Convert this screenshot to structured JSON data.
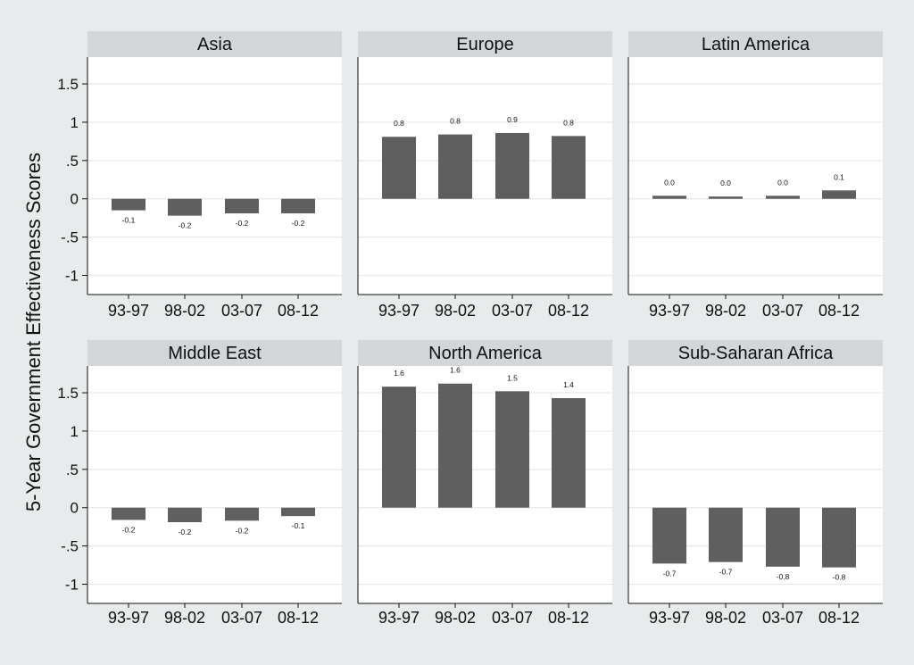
{
  "chart_data": {
    "type": "bar",
    "ylabel": "5-Year Government Effectiveness Scores",
    "categories": [
      "93-97",
      "98-02",
      "03-07",
      "08-12"
    ],
    "ylim": [
      -1.25,
      1.85
    ],
    "yticks": [
      -1,
      -0.5,
      0,
      0.5,
      1,
      1.5
    ],
    "ytick_labels": [
      "-1",
      "-.5",
      "0",
      ".5",
      "1",
      "1.5"
    ],
    "grid": true,
    "bar_color": "#5f5f5f",
    "panels": [
      {
        "name": "Asia",
        "values": [
          -0.15,
          -0.22,
          -0.19,
          -0.19
        ],
        "labels": [
          "-0.1",
          "-0.2",
          "-0.2",
          "-0.2"
        ]
      },
      {
        "name": "Europe",
        "values": [
          0.81,
          0.84,
          0.86,
          0.82
        ],
        "labels": [
          "0.8",
          "0.8",
          "0.9",
          "0.8"
        ]
      },
      {
        "name": "Latin America",
        "values": [
          0.04,
          0.03,
          0.04,
          0.11
        ],
        "labels": [
          "0.0",
          "0.0",
          "0.0",
          "0.1"
        ]
      },
      {
        "name": "Middle East",
        "values": [
          -0.16,
          -0.19,
          -0.17,
          -0.11
        ],
        "labels": [
          "-0.2",
          "-0.2",
          "-0.2",
          "-0.1"
        ]
      },
      {
        "name": "North America",
        "values": [
          1.58,
          1.62,
          1.52,
          1.43
        ],
        "labels": [
          "1.6",
          "1.6",
          "1.5",
          "1.4"
        ]
      },
      {
        "name": "Sub-Saharan Africa",
        "values": [
          -0.73,
          -0.71,
          -0.77,
          -0.78
        ],
        "labels": [
          "-0.7",
          "-0.7",
          "-0.8",
          "-0.8"
        ]
      }
    ]
  }
}
